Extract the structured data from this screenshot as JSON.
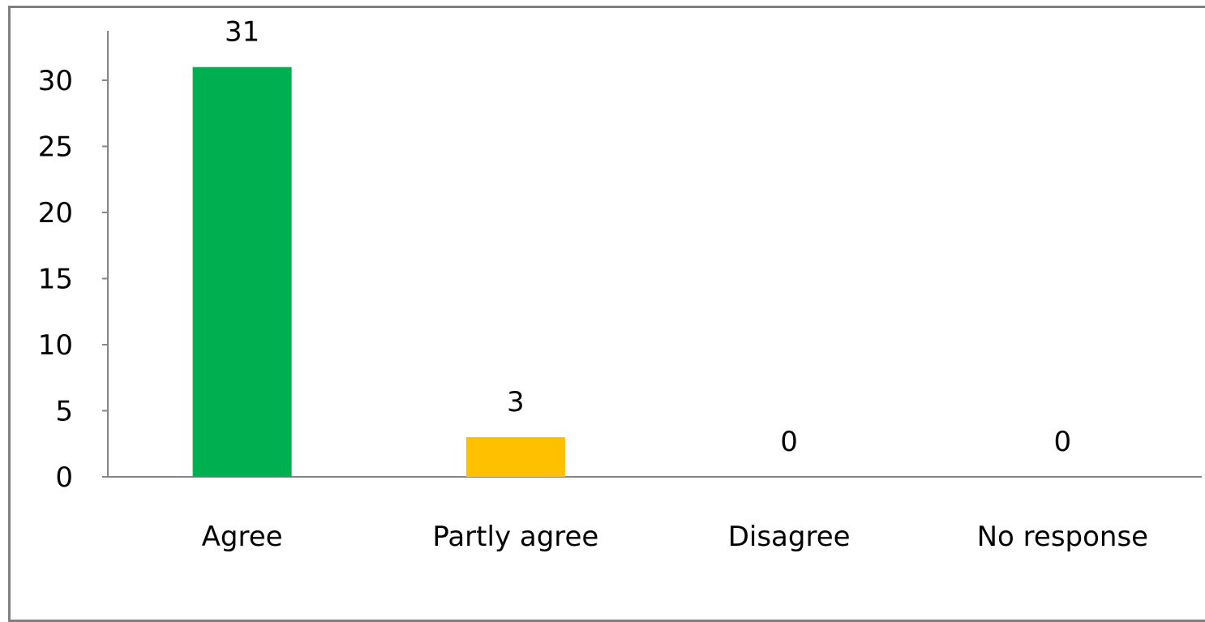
{
  "chart_data": {
    "type": "bar",
    "title": "",
    "xlabel": "",
    "ylabel": "",
    "categories": [
      "Agree",
      "Partly agree",
      "Disagree",
      "No response"
    ],
    "values": [
      31,
      3,
      0,
      0
    ],
    "data_labels": [
      "31",
      "3",
      "0",
      "0"
    ],
    "ylim": [
      0,
      30
    ],
    "yticks": [
      0,
      5,
      10,
      15,
      20,
      25,
      30
    ],
    "ytick_labels": [
      "0",
      "5",
      "10",
      "15",
      "20",
      "25",
      "30"
    ],
    "colors": [
      "#00b050",
      "#ffc000",
      "#7f7f7f",
      "#7f7f7f"
    ],
    "grid": false,
    "legend": "none"
  }
}
